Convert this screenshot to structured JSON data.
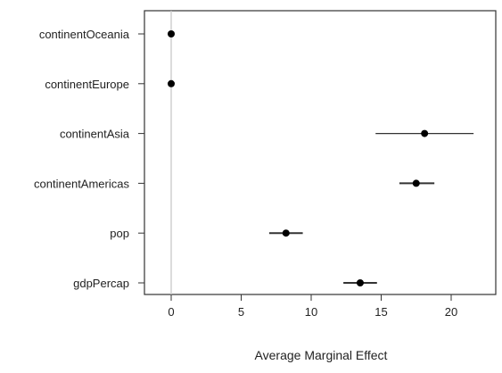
{
  "chart_data": {
    "type": "scatter",
    "title": "",
    "xlabel": "Average Marginal Effect",
    "ylabel": "",
    "xlim": [
      -2,
      23.5
    ],
    "x_ticks": [
      0,
      5,
      10,
      15,
      20
    ],
    "reference_line_x": 0,
    "grid": false,
    "colors": {
      "point": "#000000",
      "interval": "#333333",
      "reference_line": "#c8c8c8",
      "frame": "#333333"
    },
    "categories": [
      "continentOceania",
      "continentEurope",
      "continentAsia",
      "continentAmericas",
      "pop",
      "gdpPercap"
    ],
    "estimates": [
      0,
      0,
      18.1,
      17.5,
      8.2,
      13.5
    ],
    "lower": [
      0,
      0,
      14.6,
      16.3,
      7.0,
      12.3
    ],
    "upper": [
      0,
      0,
      21.6,
      18.8,
      9.4,
      14.7
    ]
  }
}
